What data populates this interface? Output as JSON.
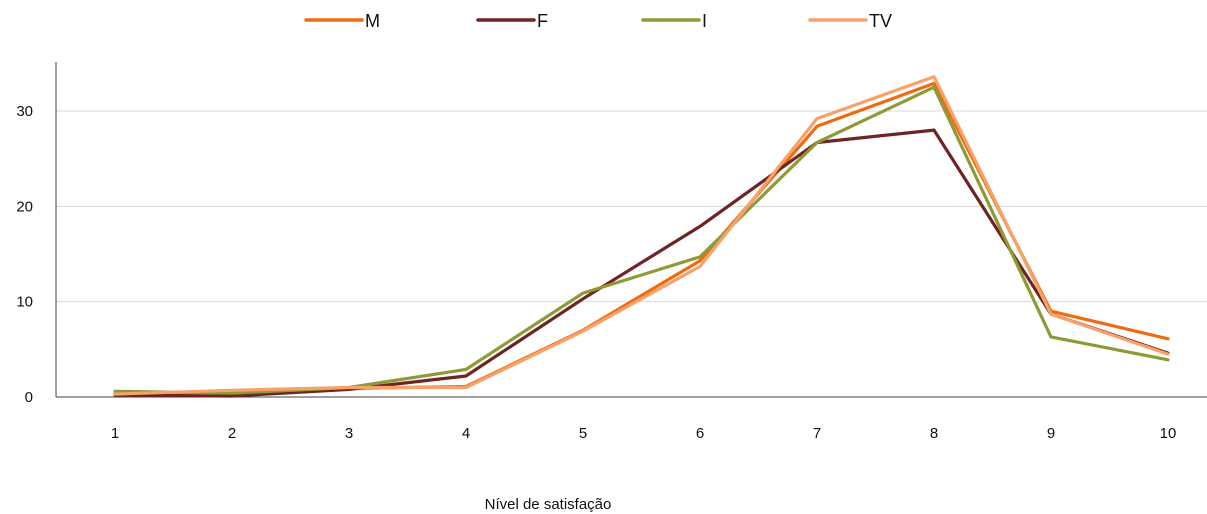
{
  "chart_data": {
    "type": "line",
    "title": "",
    "xlabel": "Nível de satisfação",
    "ylabel": "",
    "categories": [
      "1",
      "2",
      "3",
      "4",
      "5",
      "6",
      "7",
      "8",
      "9",
      "10"
    ],
    "ylim": [
      0,
      35
    ],
    "yticks": [
      0,
      10,
      20,
      30
    ],
    "grid": true,
    "legend_position": "top",
    "series": [
      {
        "name": "M",
        "color": "#f26a0f",
        "values": [
          0.4,
          0.5,
          0.9,
          1.1,
          7.0,
          14.3,
          28.4,
          32.9,
          9.0,
          6.1
        ]
      },
      {
        "name": "F",
        "color": "#6e2424",
        "values": [
          0.2,
          0.1,
          0.8,
          2.2,
          10.3,
          17.9,
          26.7,
          28.0,
          8.7,
          4.6
        ]
      },
      {
        "name": "I",
        "color": "#8e9a35",
        "values": [
          0.6,
          0.4,
          1.0,
          2.9,
          10.9,
          14.7,
          26.7,
          32.5,
          6.3,
          3.9
        ]
      },
      {
        "name": "TV",
        "color": "#f7a26a",
        "values": [
          0.3,
          0.7,
          1.0,
          1.0,
          6.9,
          13.7,
          29.2,
          33.6,
          8.7,
          4.5
        ]
      }
    ]
  }
}
